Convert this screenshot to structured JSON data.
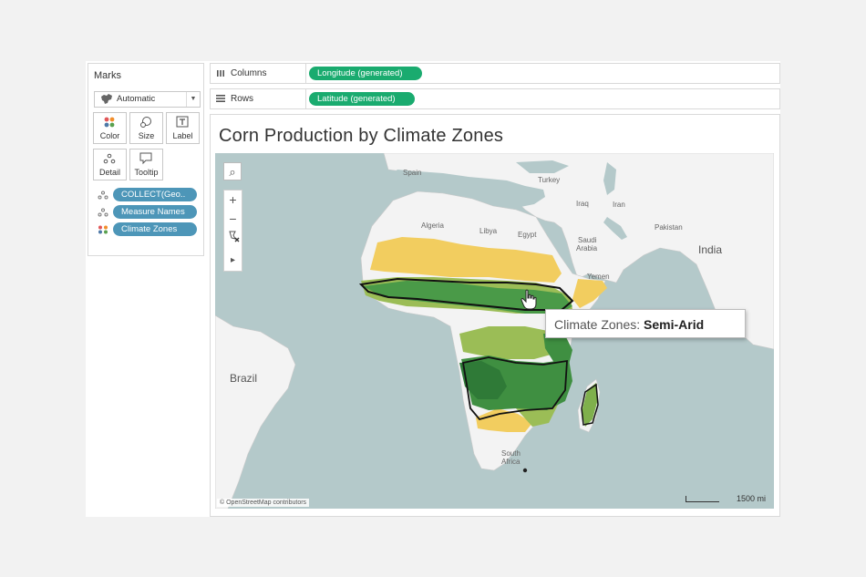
{
  "marks": {
    "title": "Marks",
    "mark_type": "Automatic",
    "buttons": [
      "Color",
      "Size",
      "Label",
      "Detail",
      "Tooltip"
    ],
    "fields": [
      "COLLECT(Geo..",
      "Measure Names",
      "Climate Zones"
    ]
  },
  "shelves": {
    "columns_label": "Columns",
    "columns_field": "Longitude (generated)",
    "rows_label": "Rows",
    "rows_field": "Latitude (generated)"
  },
  "view": {
    "title": "Corn Production by Climate Zones"
  },
  "map": {
    "labels": {
      "spain": "Spain",
      "turkey": "Turkey",
      "algeria": "Algeria",
      "libya": "Libya",
      "egypt": "Egypt",
      "iraq": "Iraq",
      "iran": "Iran",
      "saudi1": "Saudi",
      "saudi2": "Arabia",
      "pakistan": "Pakistan",
      "india": "India",
      "yemen": "Yemen",
      "brazil": "Brazil",
      "south1": "South",
      "south2": "Africa"
    },
    "tools": {
      "search": "⌕",
      "zoom_in": "+",
      "zoom_out": "−",
      "play": "▸"
    },
    "attribution": "© OpenStreetMap contributors",
    "scale": "1500 mi",
    "colors": {
      "water": "#b4c9ca",
      "land": "#f3f3f3",
      "arid": "#f2cd5f",
      "semi_arid": "#9bbd56",
      "tropical": "#3f8f41",
      "rainforest": "#2f7a37"
    }
  },
  "tooltip": {
    "key": "Climate Zones: ",
    "value": "Semi-Arid"
  }
}
